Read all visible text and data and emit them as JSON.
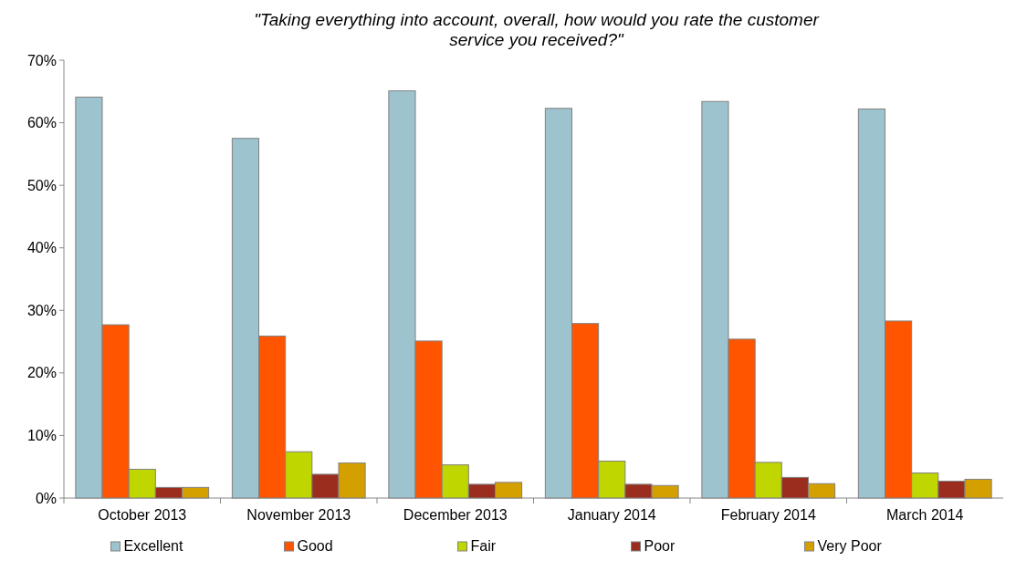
{
  "chart_data": {
    "type": "bar",
    "title": "\"Taking everything into account, overall, how would you rate the customer service you received?\"",
    "categories": [
      "October 2013",
      "November 2013",
      "December 2013",
      "January 2014",
      "February 2014",
      "March 2014"
    ],
    "series": [
      {
        "name": "Excellent",
        "color": "#9dc3cf",
        "values": [
          64.1,
          57.5,
          65.1,
          62.3,
          63.4,
          62.2
        ]
      },
      {
        "name": "Good",
        "color": "#ff5500",
        "values": [
          27.7,
          25.9,
          25.1,
          27.9,
          25.4,
          28.3
        ]
      },
      {
        "name": "Fair",
        "color": "#bfd600",
        "values": [
          4.6,
          7.4,
          5.3,
          5.9,
          5.7,
          4.0
        ]
      },
      {
        "name": "Poor",
        "color": "#9b2d1f",
        "values": [
          1.7,
          3.8,
          2.2,
          2.2,
          3.3,
          2.7
        ]
      },
      {
        "name": "Very Poor",
        "color": "#d4a000",
        "values": [
          1.7,
          5.6,
          2.5,
          2.0,
          2.3,
          3.0
        ]
      }
    ],
    "ylim": [
      0,
      70
    ],
    "yticks": [
      {
        "value": 0,
        "label": "0%"
      },
      {
        "value": 10,
        "label": "10%"
      },
      {
        "value": 20,
        "label": "20%"
      },
      {
        "value": 30,
        "label": "30%"
      },
      {
        "value": 40,
        "label": "40%"
      },
      {
        "value": 50,
        "label": "50%"
      },
      {
        "value": 60,
        "label": "60%"
      },
      {
        "value": 70,
        "label": "70%"
      }
    ],
    "legend": "bottom"
  }
}
